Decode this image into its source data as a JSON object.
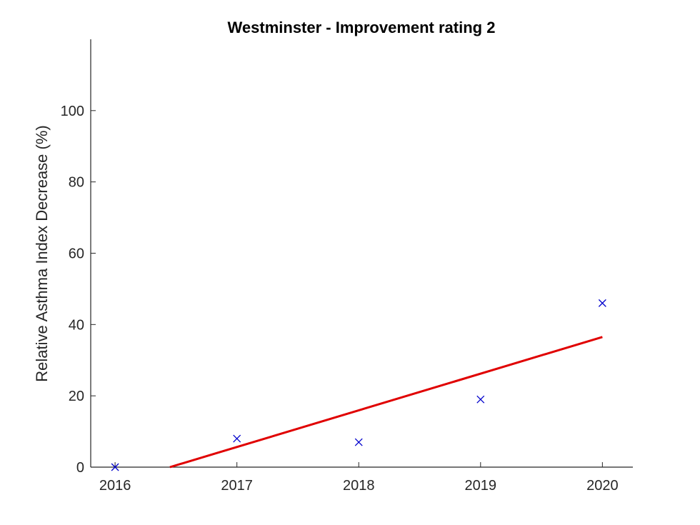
{
  "chart_data": {
    "type": "scatter",
    "title": "Westminster - Improvement rating 2",
    "xlabel": "",
    "ylabel": "Relative Asthma Index Decrease (%)",
    "xlim": [
      2015.8,
      2020.25
    ],
    "ylim": [
      0,
      120
    ],
    "xticks": [
      2016,
      2017,
      2018,
      2019,
      2020
    ],
    "xtick_labels": [
      "2016",
      "2017",
      "2018",
      "2019",
      "2020"
    ],
    "yticks": [
      0,
      20,
      40,
      60,
      80,
      100
    ],
    "ytick_labels": [
      "0",
      "20",
      "40",
      "60",
      "80",
      "100"
    ],
    "grid": false,
    "legend": "none",
    "series": [
      {
        "kind": "scatter",
        "marker": "x",
        "color": "#0000cc",
        "x": [
          2016,
          2017,
          2018,
          2019,
          2020
        ],
        "y": [
          0,
          8,
          7,
          19,
          46
        ]
      },
      {
        "kind": "line",
        "color": "#e00000",
        "x": [
          2016.45,
          2020
        ],
        "y": [
          0,
          36.5
        ]
      }
    ]
  }
}
